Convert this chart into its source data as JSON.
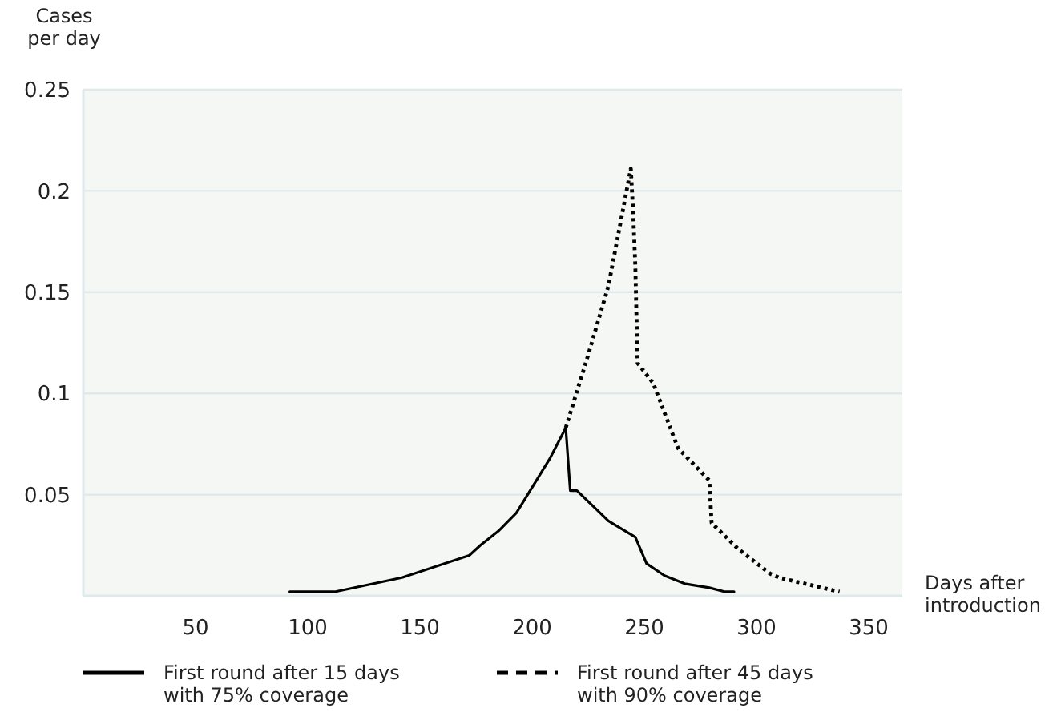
{
  "chart_data": {
    "type": "line",
    "xlabel": "Days after\nintroduction",
    "ylabel": "Cases\nper day",
    "xlim": [
      0,
      365
    ],
    "ylim": [
      0,
      0.25
    ],
    "xticks": [
      50,
      100,
      150,
      200,
      250,
      300,
      350
    ],
    "yticks": [
      0.05,
      0.1,
      0.15,
      0.2,
      0.25
    ],
    "grid": "y",
    "legend": "bottom",
    "series": [
      {
        "name": "First round after 15 days\nwith 75% coverage",
        "color": "#000000",
        "line_style": "solid",
        "x": [
          92,
          112,
          142,
          172,
          177,
          185,
          193,
          208,
          215,
          217,
          220,
          234,
          246,
          251,
          259,
          268,
          279,
          286,
          290
        ],
        "values": [
          0.002,
          0.002,
          0.009,
          0.02,
          0.025,
          0.032,
          0.041,
          0.068,
          0.083,
          0.052,
          0.052,
          0.037,
          0.029,
          0.016,
          0.01,
          0.006,
          0.004,
          0.002,
          0.002
        ]
      },
      {
        "name": "First round after 45 days\nwith 90% coverage",
        "color": "#000000",
        "line_style": "dotted",
        "x": [
          215,
          225,
          234,
          244,
          245,
          246,
          247,
          254,
          265,
          279,
          280,
          292,
          306,
          310,
          337
        ],
        "values": [
          0.083,
          0.119,
          0.153,
          0.211,
          0.19,
          0.163,
          0.115,
          0.105,
          0.073,
          0.057,
          0.036,
          0.023,
          0.011,
          0.009,
          0.002
        ]
      }
    ]
  }
}
